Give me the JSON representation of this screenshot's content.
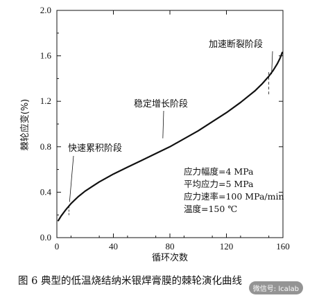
{
  "chart_data": {
    "type": "line",
    "xlabel": "循环次数",
    "ylabel": "棘轮应变(%)",
    "xlim": [
      0,
      160
    ],
    "ylim": [
      0,
      2.0
    ],
    "x_ticks": [
      "0",
      "40",
      "80",
      "120",
      "160"
    ],
    "y_ticks": [
      "0.0",
      "0.4",
      "0.8",
      "1.2",
      "1.6",
      "2.0"
    ],
    "series": [
      {
        "x": [
          1,
          3,
          6,
          10,
          15,
          20,
          25,
          30,
          40,
          50,
          60,
          70,
          80,
          90,
          100,
          110,
          120,
          130,
          140,
          145,
          150,
          153,
          156,
          158,
          159.5
        ],
        "y": [
          0.15,
          0.19,
          0.24,
          0.3,
          0.36,
          0.41,
          0.45,
          0.49,
          0.56,
          0.62,
          0.68,
          0.74,
          0.8,
          0.87,
          0.94,
          1.02,
          1.1,
          1.19,
          1.29,
          1.35,
          1.42,
          1.47,
          1.53,
          1.58,
          1.63
        ]
      }
    ],
    "annotations": [
      {
        "text": "快速累积阶段",
        "x": 8,
        "y": 0.29
      },
      {
        "text": "稳定增长阶段",
        "x": 75,
        "y": 0.85
      },
      {
        "text": "加速断裂阶段",
        "x": 150,
        "y": 1.42
      }
    ],
    "params": [
      "应力幅度=4 MPa",
      "平均应力=5 MPa",
      "应力速率=100 MPa/min",
      "温度=150 ℃"
    ]
  },
  "caption": "图 6 典型的低温烧结纳米银焊膏膜的棘轮演化曲线",
  "watermark": "微信号: lcalab"
}
